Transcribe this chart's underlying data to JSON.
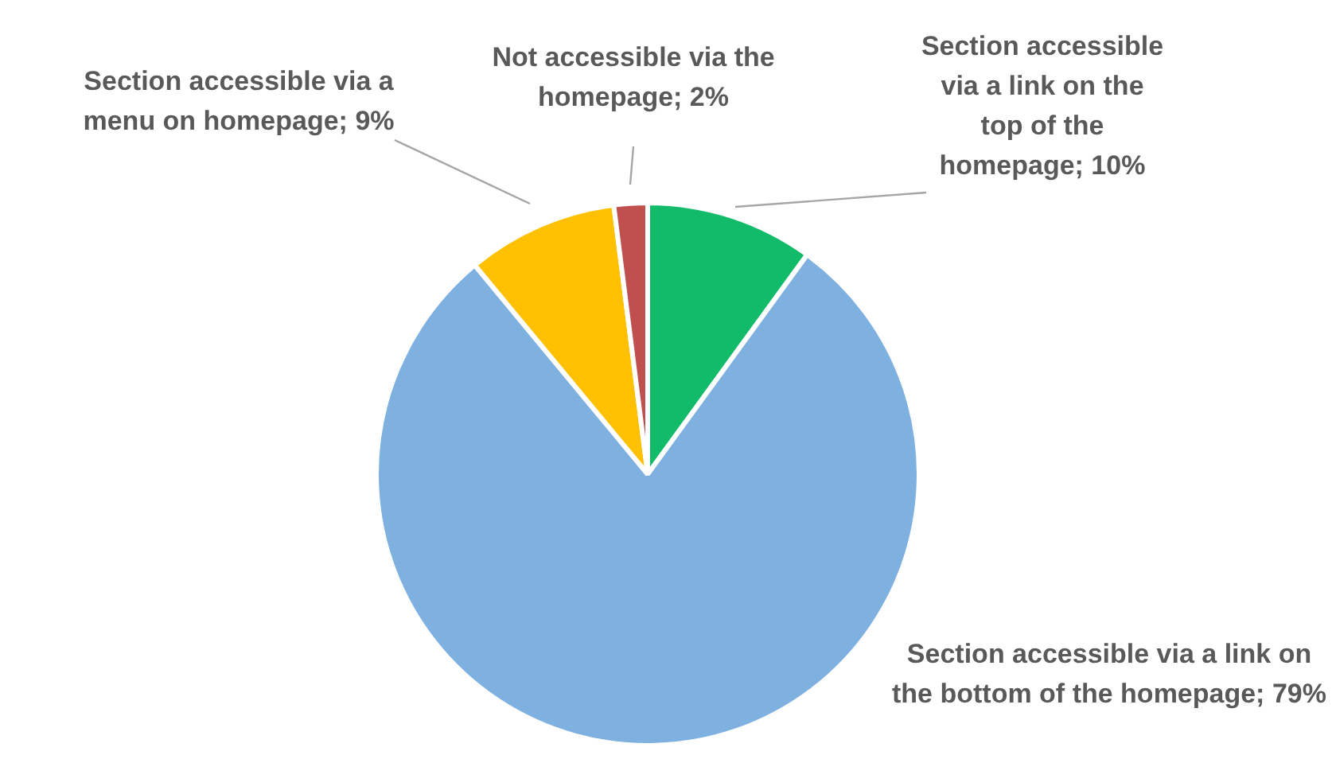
{
  "chart_data": {
    "type": "pie",
    "categories": [
      "Section accessible via a link on the top of the homepage",
      "Section accessible via a link on the bottom of the homepage",
      "Section accessible via a menu on homepage",
      "Not accessible via the homepage"
    ],
    "values": [
      10,
      79,
      9,
      2
    ],
    "value_labels": [
      "10%",
      "79%",
      "9%",
      "2%"
    ],
    "colors": [
      "#12bb6a",
      "#7eb0e0",
      "#ffc000",
      "#c0504d"
    ],
    "legend": false
  }
}
